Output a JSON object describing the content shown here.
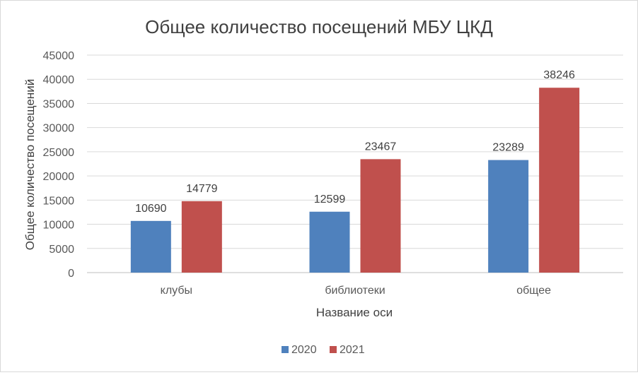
{
  "chart_data": {
    "type": "bar",
    "title": "Общее количество посещений МБУ ЦКД",
    "xlabel": "Название оси",
    "ylabel": "Общее количество посещений",
    "categories": [
      "клубы",
      "библиотеки",
      "общее"
    ],
    "series": [
      {
        "name": "2020",
        "color": "#4f81bd",
        "values": [
          10690,
          12599,
          23289
        ]
      },
      {
        "name": "2021",
        "color": "#c0504d",
        "values": [
          14779,
          23467,
          38246
        ]
      }
    ],
    "ylim": [
      0,
      45000
    ],
    "yticks": [
      0,
      5000,
      10000,
      15000,
      20000,
      25000,
      30000,
      35000,
      40000,
      45000
    ],
    "grid": true,
    "legend_position": "bottom",
    "data_labels": true
  }
}
